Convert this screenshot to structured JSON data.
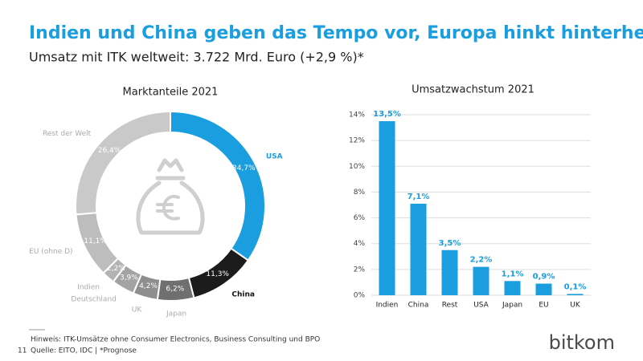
{
  "title": "Indien und China geben das Tempo vor, Europa hinkt hinterher",
  "subtitle": "Umsatz mit ITK weltweit: 3.722 Mrd. Euro (+2,9 %)*",
  "chart_data": [
    {
      "type": "pie",
      "title": "Marktanteile 2021",
      "categories": [
        "USA",
        "China",
        "Japan",
        "UK",
        "Deutschland",
        "Indien",
        "EU (ohne D)",
        "Rest der Welt"
      ],
      "values": [
        34.7,
        11.3,
        6.2,
        4.2,
        3.9,
        2.2,
        11.1,
        26.4
      ],
      "value_labels": [
        "34,7%",
        "11,3%",
        "6,2%",
        "4,2%",
        "3,9%",
        "2,2%",
        "11,1%",
        "26,4%"
      ],
      "colors": [
        "#1a9ee0",
        "#1c1c1c",
        "#6f6f6f",
        "#8e8e8e",
        "#a3a3a3",
        "#b3b3b3",
        "#bdbdbd",
        "#c9c9c9"
      ]
    },
    {
      "type": "bar",
      "title": "Umsatzwachstum 2021",
      "categories": [
        "Indien",
        "China",
        "Rest",
        "USA",
        "Japan",
        "EU",
        "UK"
      ],
      "values": [
        13.5,
        7.1,
        3.5,
        2.2,
        1.1,
        0.9,
        0.1
      ],
      "value_labels": [
        "13,5%",
        "7,1%",
        "3,5%",
        "2,2%",
        "1,1%",
        "0,9%",
        "0,1%"
      ],
      "color": "#1a9ee0",
      "ylim": [
        0,
        14
      ],
      "yticks": [
        {
          "value": 0,
          "label": "0%"
        },
        {
          "value": 2,
          "label": "2%"
        },
        {
          "value": 4,
          "label": "4%"
        },
        {
          "value": 6,
          "label": "6%"
        },
        {
          "value": 8,
          "label": "8%"
        },
        {
          "value": 10,
          "label": "10%"
        },
        {
          "value": 12,
          "label": "12%"
        },
        {
          "value": 14,
          "label": "14%"
        }
      ],
      "grid": true
    }
  ],
  "footnote": {
    "note": "Hinweis: ITK-Umsätze ohne Consumer Electronics, Business Consulting und BPO",
    "source": "Quelle: EITO, IDC | *Prognose"
  },
  "page_number": "11",
  "logo": "bitkom"
}
